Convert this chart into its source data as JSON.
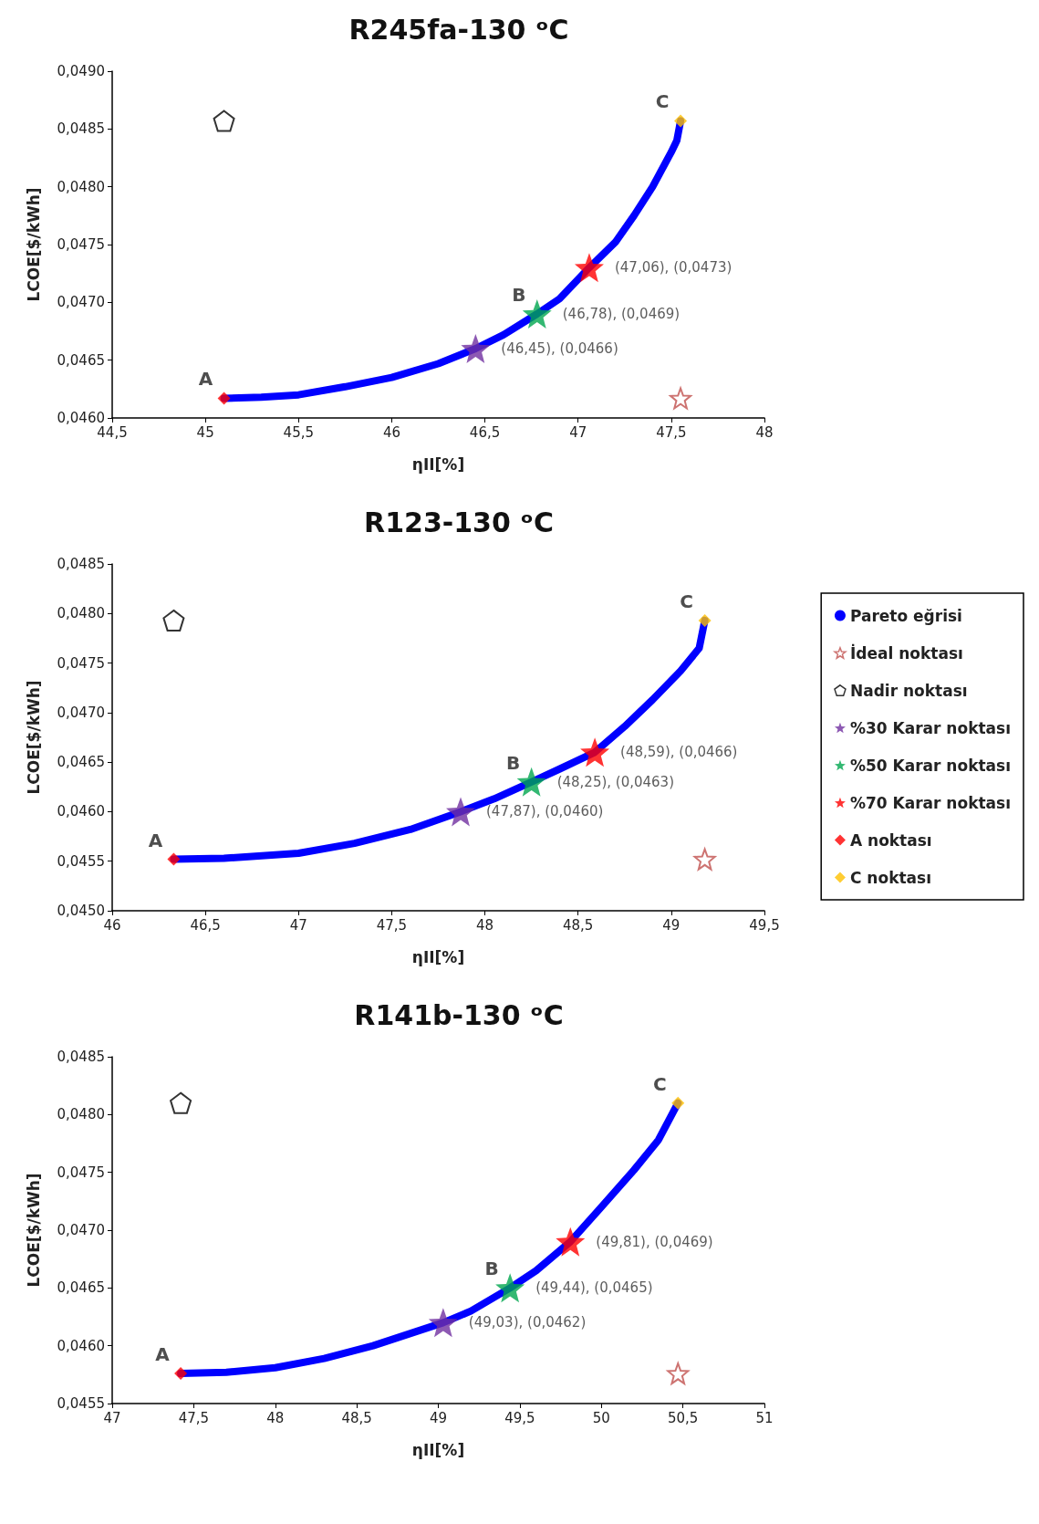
{
  "chart_data": [
    {
      "type": "scatter",
      "title": "R245fa-130 ᵒC",
      "xlabel": "ηII[%]",
      "ylabel": "LCOE[$/kWh]",
      "xlim": [
        44.5,
        48
      ],
      "ylim": [
        0.046,
        0.049
      ],
      "xticks": [
        {
          "value": 44.5,
          "label": "44,5"
        },
        45,
        {
          "value": 45.5,
          "label": "45,5"
        },
        46,
        {
          "value": 46.5,
          "label": "46,5"
        },
        47,
        {
          "value": 47.5,
          "label": "47,5"
        },
        48
      ],
      "yticks": [
        {
          "value": 0.046,
          "label": "0,0460"
        },
        {
          "value": 0.0465,
          "label": "0,0465"
        },
        {
          "value": 0.047,
          "label": "0,0470"
        },
        {
          "value": 0.0475,
          "label": "0,0475"
        },
        {
          "value": 0.048,
          "label": "0,0480"
        },
        {
          "value": 0.0485,
          "label": "0,0485"
        },
        {
          "value": 0.049,
          "label": "0,0490"
        }
      ],
      "grid": false,
      "legend": false,
      "annotations": [
        {
          "text": "A",
          "x": 45.1,
          "y": 0.04617
        },
        {
          "text": "B",
          "x": 46.78,
          "y": 0.0469
        },
        {
          "text": "C",
          "x": 47.55,
          "y": 0.04857
        }
      ],
      "series": [
        {
          "type": "line",
          "marker": "none",
          "color": "#0000ff",
          "x": [
            45.1,
            45.3,
            45.5,
            45.75,
            46,
            46.25,
            46.45,
            46.6,
            46.78,
            46.9,
            47.06,
            47.2,
            47.3,
            47.4,
            47.5,
            47.53,
            47.55
          ],
          "values": [
            0.04617,
            0.04618,
            0.0462,
            0.04627,
            0.04635,
            0.04647,
            0.0466,
            0.04672,
            0.0469,
            0.04703,
            0.0473,
            0.04752,
            0.04775,
            0.048,
            0.0483,
            0.0484,
            0.04857
          ]
        },
        {
          "marker": "star",
          "color": "#c0504d",
          "x": [
            47.55
          ],
          "values": [
            0.04617
          ]
        },
        {
          "color": "#000000",
          "x": [
            45.1
          ],
          "values": [
            0.04857
          ]
        },
        {
          "marker": "star",
          "color": "#7030a0",
          "x": [
            46.45
          ],
          "values": [
            0.0466
          ],
          "value_labels": [
            "(46,45), (0,0466)"
          ]
        },
        {
          "marker": "star",
          "color": "#00a64f",
          "x": [
            46.78
          ],
          "values": [
            0.0469
          ],
          "value_labels": [
            "(46,78), (0,0469)"
          ]
        },
        {
          "marker": "star",
          "color": "#ff0000",
          "x": [
            47.06
          ],
          "values": [
            0.0473
          ],
          "value_labels": [
            "(47,06), (0,0473)"
          ]
        },
        {
          "marker": "diamond",
          "color": "#ff0000",
          "x": [
            45.1
          ],
          "values": [
            0.04617
          ]
        },
        {
          "marker": "diamond",
          "color": "#ffc000",
          "x": [
            47.55
          ],
          "values": [
            0.04857
          ]
        }
      ]
    },
    {
      "type": "scatter",
      "title": "R123-130 ᵒC",
      "xlabel": "ηII[%]",
      "ylabel": "LCOE[$/kWh]",
      "xlim": [
        46,
        49.5
      ],
      "ylim": [
        0.045,
        0.0485
      ],
      "xticks": [
        46,
        {
          "value": 46.5,
          "label": "46,5"
        },
        47,
        {
          "value": 47.5,
          "label": "47,5"
        },
        48,
        {
          "value": 48.5,
          "label": "48,5"
        },
        49,
        {
          "value": 49.5,
          "label": "49,5"
        }
      ],
      "yticks": [
        {
          "value": 0.045,
          "label": "0,0450"
        },
        {
          "value": 0.0455,
          "label": "0,0455"
        },
        {
          "value": 0.046,
          "label": "0,0460"
        },
        {
          "value": 0.0465,
          "label": "0,0465"
        },
        {
          "value": 0.047,
          "label": "0,0470"
        },
        {
          "value": 0.0475,
          "label": "0,0475"
        },
        {
          "value": 0.048,
          "label": "0,0480"
        },
        {
          "value": 0.0485,
          "label": "0,0485"
        }
      ],
      "grid": false,
      "legend": "right",
      "annotations": [
        {
          "text": "A",
          "x": 46.33,
          "y": 0.04552
        },
        {
          "text": "B",
          "x": 48.25,
          "y": 0.0463
        },
        {
          "text": "C",
          "x": 49.18,
          "y": 0.04793
        }
      ],
      "series": [
        {
          "name": "Pareto eğrisi",
          "type": "line",
          "marker": "none",
          "color": "#0000ff",
          "x": [
            46.33,
            46.6,
            47,
            47.3,
            47.6,
            47.87,
            48.05,
            48.25,
            48.4,
            48.59,
            48.75,
            48.9,
            49.05,
            49.15,
            49.18
          ],
          "values": [
            0.04552,
            0.04553,
            0.04558,
            0.04568,
            0.04582,
            0.046,
            0.04613,
            0.0463,
            0.04643,
            0.0466,
            0.04686,
            0.04713,
            0.04742,
            0.04765,
            0.04793
          ]
        },
        {
          "name": "İdeal noktası",
          "marker": "star",
          "color": "#c0504d",
          "x": [
            49.18
          ],
          "values": [
            0.04552
          ]
        },
        {
          "name": "Nadir noktası",
          "color": "#000000",
          "x": [
            46.33
          ],
          "values": [
            0.04793
          ]
        },
        {
          "name": "%30 Karar noktası",
          "marker": "star",
          "color": "#7030a0",
          "x": [
            47.87
          ],
          "values": [
            0.046
          ],
          "value_labels": [
            "(47,87), (0,0460)"
          ]
        },
        {
          "name": "%50 Karar noktası",
          "marker": "star",
          "color": "#00a64f",
          "x": [
            48.25
          ],
          "values": [
            0.0463
          ],
          "value_labels": [
            "(48,25), (0,0463)"
          ]
        },
        {
          "name": "%70 Karar noktası",
          "marker": "star",
          "color": "#ff0000",
          "x": [
            48.59
          ],
          "values": [
            0.0466
          ],
          "value_labels": [
            "(48,59), (0,0466)"
          ]
        },
        {
          "name": "A noktası",
          "marker": "diamond",
          "color": "#ff0000",
          "x": [
            46.33
          ],
          "values": [
            0.04552
          ]
        },
        {
          "name": "C noktası",
          "marker": "diamond",
          "color": "#ffc000",
          "x": [
            49.18
          ],
          "values": [
            0.04793
          ]
        }
      ]
    },
    {
      "type": "scatter",
      "title": "R141b-130 ᵒC",
      "xlabel": "ηII[%]",
      "ylabel": "LCOE[$/kWh]",
      "xlim": [
        47,
        51
      ],
      "ylim": [
        0.0455,
        0.0485
      ],
      "xticks": [
        47,
        {
          "value": 47.5,
          "label": "47,5"
        },
        48,
        {
          "value": 48.5,
          "label": "48,5"
        },
        49,
        {
          "value": 49.5,
          "label": "49,5"
        },
        50,
        {
          "value": 50.5,
          "label": "50,5"
        },
        51
      ],
      "yticks": [
        {
          "value": 0.0455,
          "label": "0,0455"
        },
        {
          "value": 0.046,
          "label": "0,0460"
        },
        {
          "value": 0.0465,
          "label": "0,0465"
        },
        {
          "value": 0.047,
          "label": "0,0470"
        },
        {
          "value": 0.0475,
          "label": "0,0475"
        },
        {
          "value": 0.048,
          "label": "0,0480"
        },
        {
          "value": 0.0485,
          "label": "0,0485"
        }
      ],
      "grid": false,
      "legend": false,
      "annotations": [
        {
          "text": "A",
          "x": 47.42,
          "y": 0.04576
        },
        {
          "text": "B",
          "x": 49.44,
          "y": 0.0465
        },
        {
          "text": "C",
          "x": 50.47,
          "y": 0.0481
        }
      ],
      "series": [
        {
          "type": "line",
          "marker": "none",
          "color": "#0000ff",
          "x": [
            47.42,
            47.7,
            48,
            48.3,
            48.6,
            49.03,
            49.2,
            49.44,
            49.6,
            49.81,
            50,
            50.2,
            50.35,
            50.47
          ],
          "values": [
            0.04576,
            0.04577,
            0.04581,
            0.04589,
            0.046,
            0.0462,
            0.0463,
            0.0465,
            0.04665,
            0.0469,
            0.0472,
            0.04752,
            0.04778,
            0.0481
          ]
        },
        {
          "marker": "star",
          "color": "#c0504d",
          "x": [
            50.47
          ],
          "values": [
            0.04576
          ]
        },
        {
          "color": "#000000",
          "x": [
            47.42
          ],
          "values": [
            0.0481
          ]
        },
        {
          "marker": "star",
          "color": "#7030a0",
          "x": [
            49.03
          ],
          "values": [
            0.0462
          ],
          "value_labels": [
            "(49,03), (0,0462)"
          ]
        },
        {
          "marker": "star",
          "color": "#00a64f",
          "x": [
            49.44
          ],
          "values": [
            0.0465
          ],
          "value_labels": [
            "(49,44), (0,0465)"
          ]
        },
        {
          "marker": "star",
          "color": "#ff0000",
          "x": [
            49.81
          ],
          "values": [
            0.0469
          ],
          "value_labels": [
            "(49,81), (0,0469)"
          ]
        },
        {
          "marker": "diamond",
          "color": "#ff0000",
          "x": [
            47.42
          ],
          "values": [
            0.04576
          ]
        },
        {
          "marker": "diamond",
          "color": "#ffc000",
          "x": [
            50.47
          ],
          "values": [
            0.0481
          ]
        }
      ]
    }
  ]
}
